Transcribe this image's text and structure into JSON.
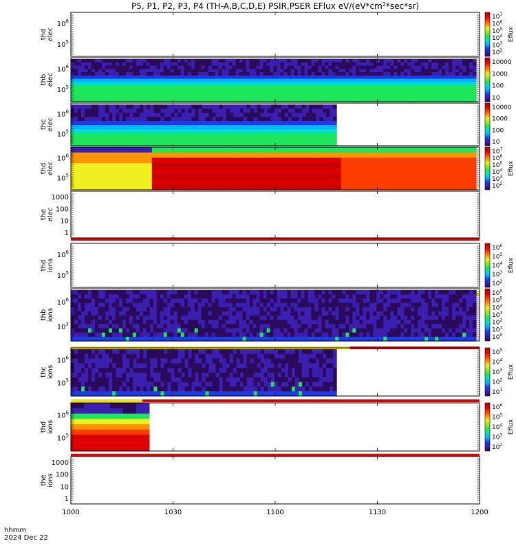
{
  "chart_data": {
    "type": "heatmap",
    "title": "P5, P1, P2, P3, P4 (TH-A,B,C,D,E) PSIR,PSER EFlux eV/(eV*cm",
    "title_sup": "2",
    "title_tail": "*sec*sr)",
    "x_ticks": [
      "1000",
      "1030",
      "1100",
      "1130",
      "1200"
    ],
    "x_corner_label": "hhmm",
    "date_label": "2024 Dec 22",
    "x_range": [
      "10:00",
      "12:00"
    ],
    "colormap": [
      "#2a0a5a",
      "#3b1fb0",
      "#1e3ce6",
      "#00b4ff",
      "#00e0c8",
      "#1ee65a",
      "#8ced1e",
      "#f0f01e",
      "#ff9400",
      "#ff3c00",
      "#dc0000",
      "#c80000"
    ],
    "cbar_label": "Eflux",
    "panels": [
      {
        "line1": "thd",
        "line2": "elec",
        "ylabels": [
          "10",
          "10"
        ],
        "yexp": [
          "8",
          "5"
        ],
        "cbar_ticks": [
          "10",
          "10",
          "10",
          "10",
          "10",
          "10"
        ],
        "cbar_exp": [
          "7",
          "6",
          "5",
          "4",
          "3",
          "2"
        ],
        "cbar_show_label": true
      },
      {
        "line1": "thb",
        "line2": "elec",
        "ylabels": [
          "10",
          "10"
        ],
        "yexp": [
          "6",
          "5"
        ],
        "cbar_ticks": [
          "10000",
          "1000",
          "100",
          "10"
        ],
        "cbar_exp": [],
        "cbar_show_label": false,
        "data_end": "11:59"
      },
      {
        "line1": "thc",
        "line2": "elec",
        "ylabels": [
          "10",
          "10"
        ],
        "yexp": [
          "6",
          "5"
        ],
        "cbar_ticks": [
          "10000",
          "1000",
          "100",
          "10"
        ],
        "cbar_exp": [],
        "cbar_show_label": false,
        "data_end": "11:18"
      },
      {
        "line1": "thd",
        "line2": "elec",
        "ylabels": [
          "10",
          "10"
        ],
        "yexp": [
          "6",
          "5"
        ],
        "cbar_ticks": [
          "10",
          "10",
          "10",
          "10",
          "10",
          "10"
        ],
        "cbar_exp": [
          "7",
          "6",
          "5",
          "4",
          "3",
          "2"
        ],
        "cbar_show_label": true,
        "data_end": "11:59"
      },
      {
        "line1": "the",
        "line2": "elec",
        "ylabels": [
          "1000",
          "100",
          "10",
          "1"
        ],
        "yexp": [],
        "cbar_ticks": [],
        "cbar_exp": [],
        "cbar_show_label": false
      },
      {
        "line1": "thd",
        "line2": "ions",
        "ylabels": [
          "10",
          "10"
        ],
        "yexp": [
          "6",
          "5"
        ],
        "cbar_ticks": [
          "10",
          "10",
          "10",
          "10",
          "10"
        ],
        "cbar_exp": [
          "6",
          "5",
          "4",
          "3",
          "2"
        ],
        "cbar_show_label": true
      },
      {
        "line1": "thb",
        "line2": "ions",
        "ylabels": [
          "10",
          "10"
        ],
        "yexp": [
          "6",
          "3"
        ],
        "cbar_ticks": [
          "10",
          "10",
          "10",
          "10",
          "10",
          "10",
          "10"
        ],
        "cbar_exp": [
          "5",
          "5",
          "4",
          "3",
          "2",
          "1",
          "0"
        ],
        "cbar_show_label": false,
        "data_end": "11:59"
      },
      {
        "line1": "thc",
        "line2": "ions",
        "ylabels": [
          "10",
          "10"
        ],
        "yexp": [
          "6",
          "5"
        ],
        "cbar_ticks": [
          "10",
          "10",
          "10",
          "10",
          "10"
        ],
        "cbar_exp": [
          "5",
          "4",
          "3",
          "2",
          "1"
        ],
        "cbar_show_label": true,
        "data_end": "11:18"
      },
      {
        "line1": "thd",
        "line2": "ions",
        "ylabels": [
          "10",
          "10"
        ],
        "yexp": [
          "6",
          "5"
        ],
        "cbar_ticks": [
          "10",
          "10",
          "10",
          "10",
          "10"
        ],
        "cbar_exp": [
          "6",
          "5",
          "4",
          "3",
          "2"
        ],
        "cbar_show_label": true,
        "data_end": "10:23"
      },
      {
        "line1": "the",
        "line2": "ions",
        "ylabels": [
          "1000",
          "100",
          "10",
          "1"
        ],
        "yexp": [],
        "cbar_ticks": [],
        "cbar_exp": [],
        "cbar_show_label": false
      }
    ]
  }
}
